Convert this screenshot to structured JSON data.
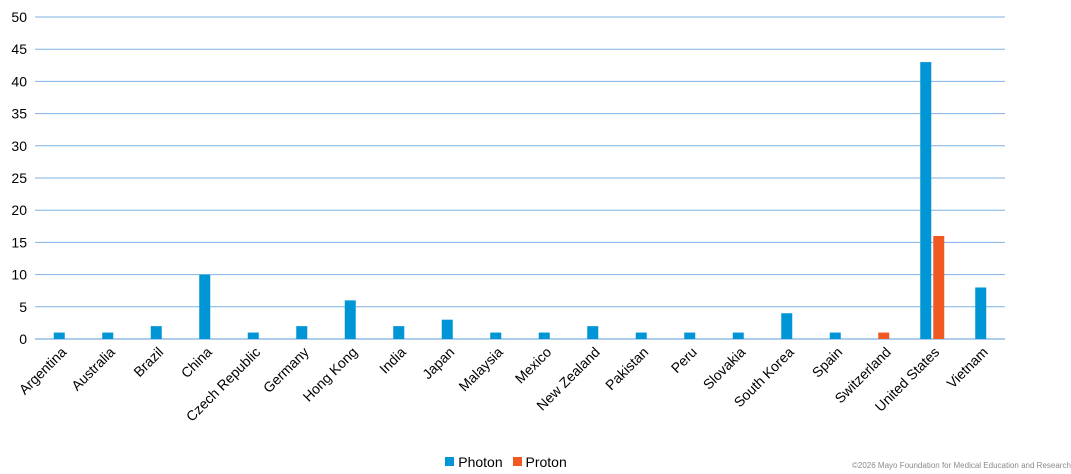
{
  "chart_data": {
    "type": "bar",
    "categories": [
      "Argentina",
      "Australia",
      "Brazil",
      "China",
      "Czech Republic",
      "Germany",
      "Hong Kong",
      "India",
      "Japan",
      "Malaysia",
      "Mexico",
      "New Zealand",
      "Pakistan",
      "Peru",
      "Slovakia",
      "South Korea",
      "Spain",
      "Switzerland",
      "United States",
      "Vietnam"
    ],
    "series": [
      {
        "name": "Photon",
        "color": "#0096d6",
        "values": [
          1,
          1,
          2,
          10,
          1,
          2,
          6,
          2,
          3,
          1,
          1,
          2,
          1,
          1,
          1,
          4,
          1,
          0,
          43,
          8
        ]
      },
      {
        "name": "Proton",
        "color": "#f05a22",
        "values": [
          0,
          0,
          0,
          0,
          0,
          0,
          0,
          0,
          0,
          0,
          0,
          0,
          0,
          0,
          0,
          0,
          0,
          1,
          16,
          0
        ]
      }
    ],
    "yticks": [
      0,
      5,
      10,
      15,
      20,
      25,
      30,
      35,
      40,
      45,
      50
    ],
    "ylim": [
      0,
      50
    ],
    "grid": true,
    "gridline_color": "#7fb2e5",
    "legend_position": "bottom"
  },
  "footer": {
    "copyright": "©2026 Mayo Foundation for Medical Education and Research"
  }
}
